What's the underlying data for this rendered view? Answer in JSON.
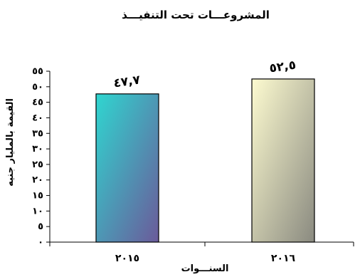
{
  "chart_data": {
    "type": "bar",
    "title": "المشروعـــات تحت التنفيـــذ",
    "xlabel": "السنـــوات",
    "ylabel": "القيمة بالمليار جنيه",
    "categories": [
      "٢٠١٥",
      "٢٠١٦"
    ],
    "values": [
      47.7,
      52.5
    ],
    "data_labels": [
      "٤٧,٧",
      "٥٢,٥"
    ],
    "ylim": [
      0,
      55
    ],
    "yticks": [
      0,
      5,
      10,
      15,
      20,
      25,
      30,
      35,
      40,
      45,
      50,
      55
    ],
    "ytick_labels": [
      "٠",
      "٥",
      "١٠",
      "١٥",
      "٢٠",
      "٢٥",
      "٣٠",
      "٣٥",
      "٤٠",
      "٤٥",
      "٥٠",
      "٥٥"
    ],
    "grid": false,
    "legend": "none",
    "bar_colors": [
      {
        "top_left": "#2fd6d0",
        "bottom_right": "#6b5a9a"
      },
      {
        "top_left": "#fdfbd0",
        "bottom_right": "#8a8a80"
      }
    ]
  }
}
